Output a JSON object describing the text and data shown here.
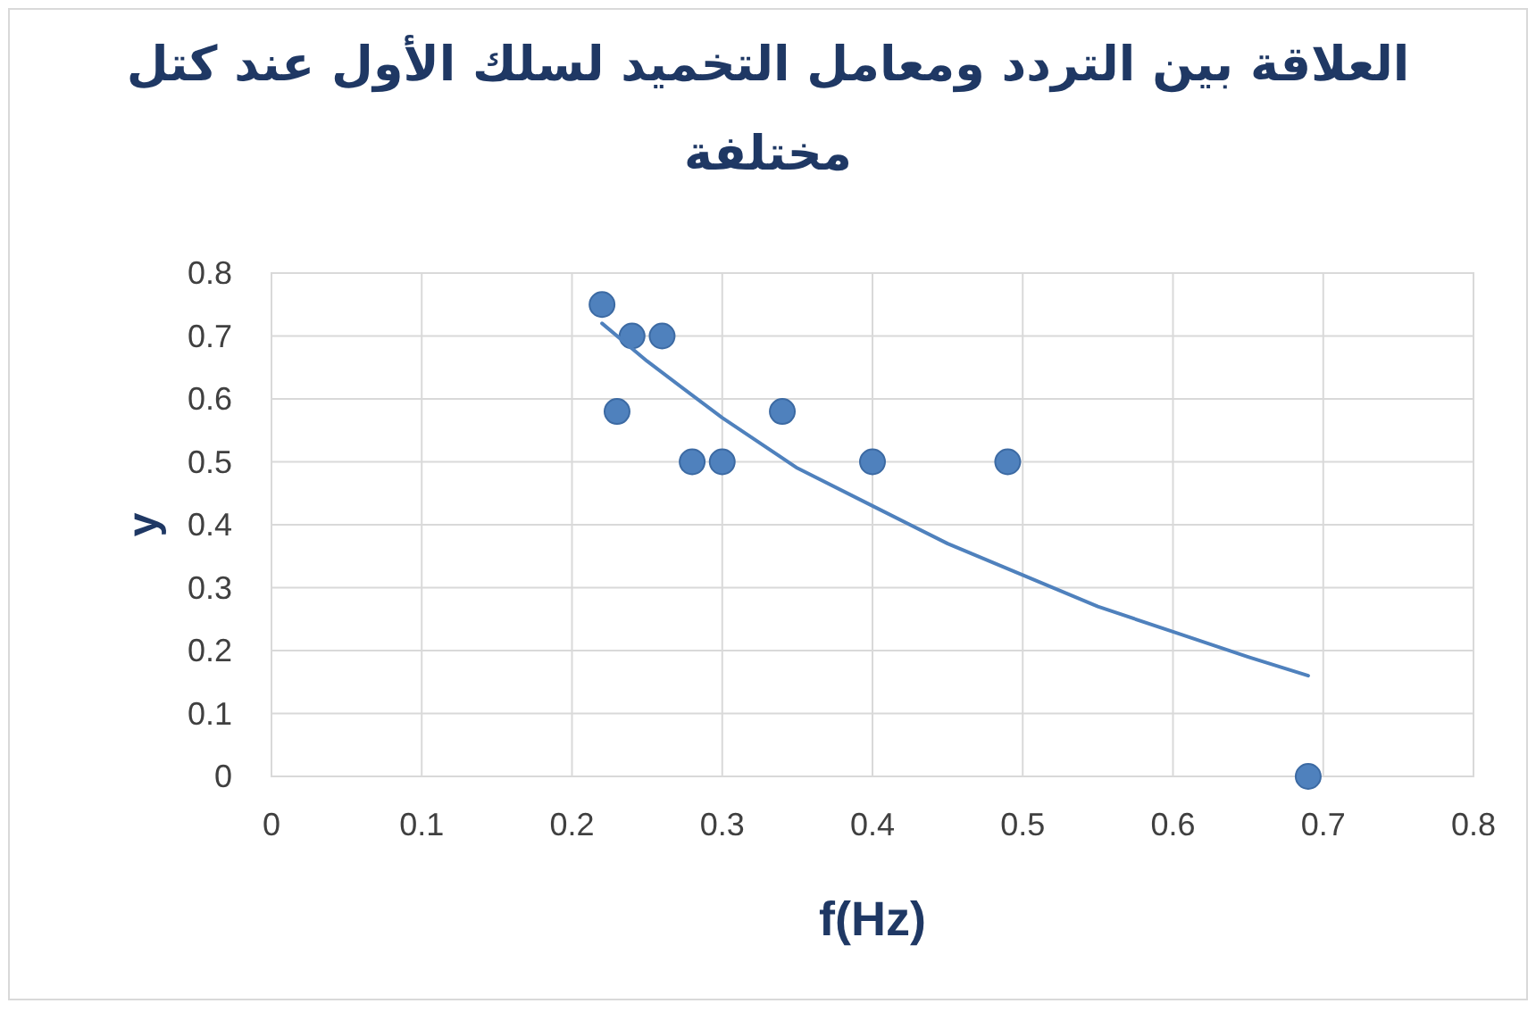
{
  "chart_data": {
    "type": "scatter",
    "title": "العلاقة بين التردد ومعامل التخميد لسلك الأول عند كتل مختلفة",
    "xlabel": "f(Hz)",
    "ylabel": "y",
    "xlim": [
      0,
      0.8
    ],
    "ylim": [
      0,
      0.8
    ],
    "xticks": [
      0,
      0.1,
      0.2,
      0.3,
      0.4,
      0.5,
      0.6,
      0.7,
      0.8
    ],
    "yticks": [
      0,
      0.1,
      0.2,
      0.3,
      0.4,
      0.5,
      0.6,
      0.7,
      0.8
    ],
    "grid": true,
    "series": [
      {
        "marker": "circle",
        "color": "#4f81bd",
        "x": [
          0.22,
          0.23,
          0.24,
          0.26,
          0.28,
          0.3,
          0.34,
          0.4,
          0.49,
          0.69
        ],
        "values": [
          0.75,
          0.58,
          0.7,
          0.7,
          0.5,
          0.5,
          0.58,
          0.5,
          0.5,
          0
        ]
      },
      {
        "type": "line",
        "marker": "none",
        "color": "#4f81bd",
        "x": [
          0.22,
          0.25,
          0.3,
          0.35,
          0.4,
          0.45,
          0.5,
          0.55,
          0.6,
          0.65,
          0.69
        ],
        "values": [
          0.72,
          0.66,
          0.57,
          0.49,
          0.43,
          0.37,
          0.32,
          0.27,
          0.23,
          0.19,
          0.16
        ]
      }
    ]
  }
}
